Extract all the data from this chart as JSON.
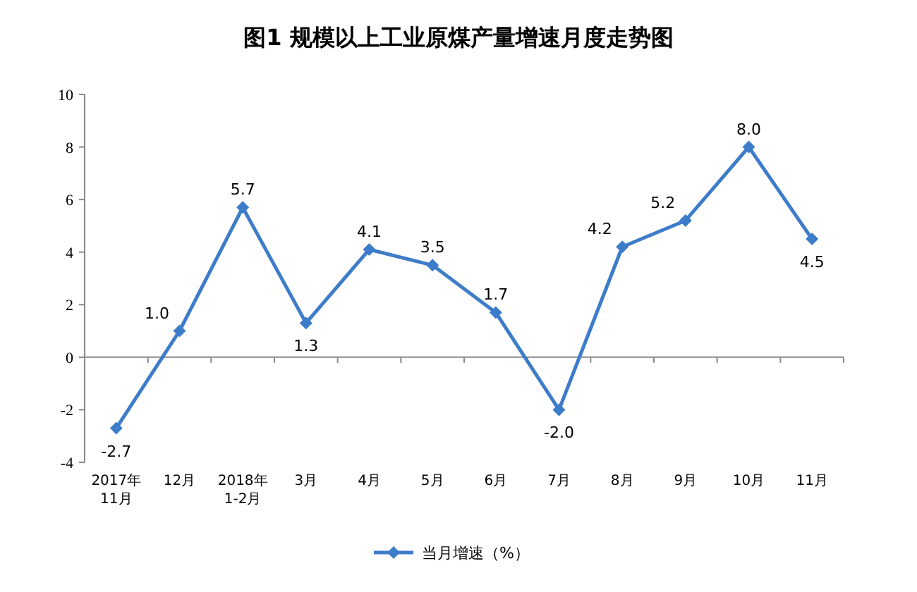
{
  "chart_data": {
    "type": "line",
    "title": "图1  规模以上工业原煤产量增速月度走势图",
    "categories": [
      "2017年\n11月",
      "12月",
      "2018年\n1-2月",
      "3月",
      "4月",
      "5月",
      "6月",
      "7月",
      "8月",
      "9月",
      "10月",
      "11月"
    ],
    "series": [
      {
        "name": "当月增速（%）",
        "color": "#3d7cc9",
        "values": [
          -2.7,
          1.0,
          5.7,
          1.3,
          4.1,
          3.5,
          1.7,
          -2.0,
          4.2,
          5.2,
          8.0,
          4.5
        ],
        "value_labels": [
          "-2.7",
          "1.0",
          "5.7",
          "1.3",
          "4.1",
          "3.5",
          "1.7",
          "-2.0",
          "4.2",
          "5.2",
          "8.0",
          "4.5"
        ]
      }
    ],
    "ylim": [
      -4,
      10
    ],
    "yticks": [
      -4,
      -2,
      0,
      2,
      4,
      6,
      8,
      10
    ],
    "legend": "bottom",
    "marker": "diamond",
    "line_style": "solid"
  }
}
